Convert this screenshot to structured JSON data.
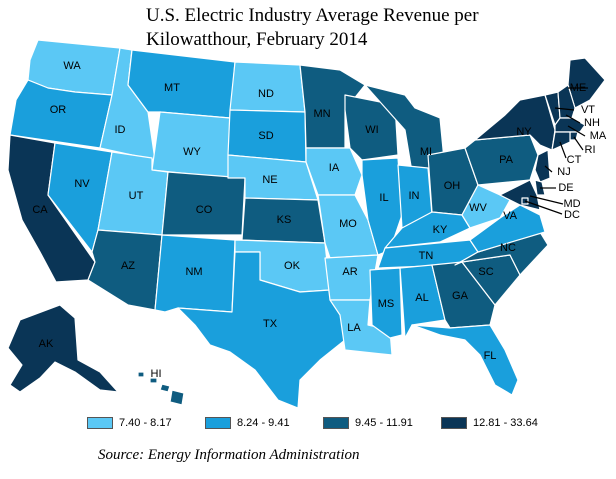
{
  "title_line1": "U.S. Electric Industry Average Revenue per",
  "title_line2": "Kilowatthour, February 2014",
  "source": "Source: Energy Information Administration",
  "legend": [
    {
      "label": "7.40 - 8.17",
      "color": "#5bc8f5"
    },
    {
      "label": "8.24 - 9.41",
      "color": "#1a9fdc"
    },
    {
      "label": "9.45 - 11.91",
      "color": "#0f5c80"
    },
    {
      "label": "12.81 - 33.64",
      "color": "#0a3556"
    }
  ],
  "states": {
    "WA": "WA",
    "OR": "OR",
    "CA": "CA",
    "NV": "NV",
    "ID": "ID",
    "MT": "MT",
    "WY": "WY",
    "UT": "UT",
    "AZ": "AZ",
    "CO": "CO",
    "NM": "NM",
    "ND": "ND",
    "SD": "SD",
    "NE": "NE",
    "KS": "KS",
    "OK": "OK",
    "TX": "TX",
    "MN": "MN",
    "IA": "IA",
    "MO": "MO",
    "AR": "AR",
    "LA": "LA",
    "WI": "WI",
    "IL": "IL",
    "MI": "MI",
    "IN": "IN",
    "OH": "OH",
    "KY": "KY",
    "TN": "TN",
    "MS": "MS",
    "AL": "AL",
    "GA": "GA",
    "FL": "FL",
    "SC": "SC",
    "NC": "NC",
    "VA": "VA",
    "WV": "WV",
    "PA": "PA",
    "NY": "NY",
    "ME": "ME",
    "VT": "VT",
    "NH": "NH",
    "MA": "MA",
    "RI": "RI",
    "CT": "CT",
    "NJ": "NJ",
    "DE": "DE",
    "MD": "MD",
    "DC": "DC",
    "AK": "AK",
    "HI": "HI"
  }
}
